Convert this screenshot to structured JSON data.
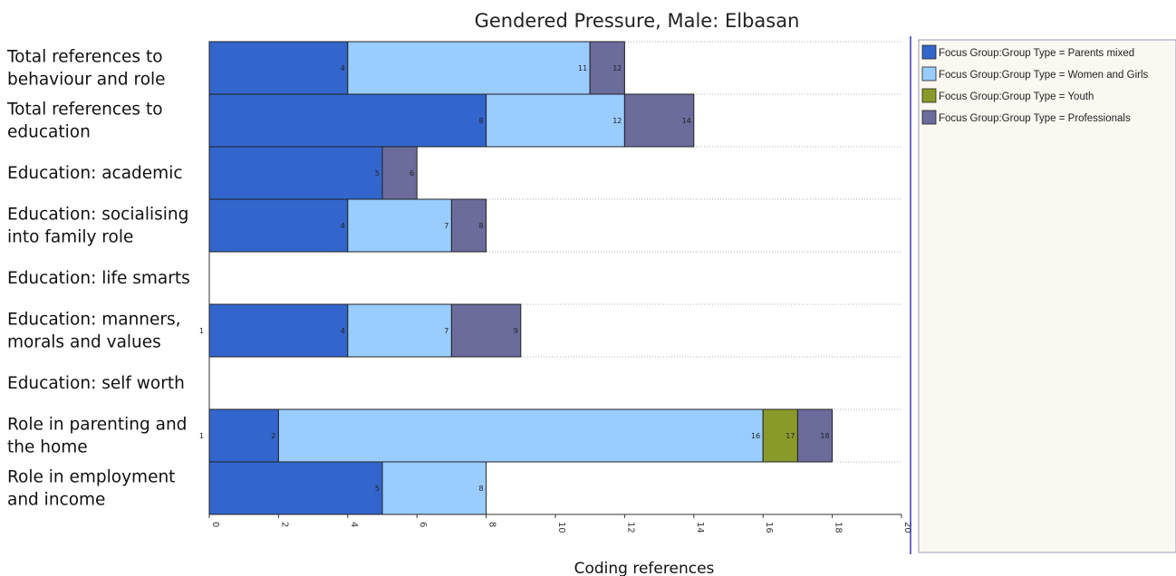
{
  "chart_data": {
    "type": "bar",
    "orientation": "horizontal",
    "stacked": true,
    "title": "Gendered Pressure, Male: Elbasan",
    "xlabel": "Coding references",
    "ylabel": "",
    "xlim": [
      0,
      20
    ],
    "x_ticks": [
      0,
      2,
      4,
      6,
      8,
      10,
      12,
      14,
      16,
      18,
      20
    ],
    "grid": "horizontal dotted separators",
    "legend_position": "right",
    "categories": [
      [
        "Total references to",
        "behaviour and role"
      ],
      [
        "Total references to",
        "education"
      ],
      [
        "Education: academic"
      ],
      [
        "Education: socialising",
        "into family role"
      ],
      [
        "Education: life smarts"
      ],
      [
        "Education: manners,",
        "morals and values"
      ],
      [
        "Education: self worth"
      ],
      [
        "Role in parenting and",
        "the home"
      ],
      [
        "Role in employment",
        "and income"
      ]
    ],
    "series": [
      {
        "name": "Focus Group:Group Type = Parents mixed",
        "color": "#3366cc",
        "values": [
          4,
          8,
          5,
          4,
          0,
          4,
          0,
          2,
          5
        ]
      },
      {
        "name": "Focus Group:Group Type = Women and Girls",
        "color": "#99ccff",
        "values": [
          7,
          4,
          0,
          3,
          0,
          3,
          0,
          14,
          3
        ]
      },
      {
        "name": "Focus Group:Group Type = Youth",
        "color": "#8a9a2a",
        "values": [
          0,
          0,
          0,
          0,
          0,
          0,
          0,
          1,
          0
        ]
      },
      {
        "name": "Focus Group:Group Type = Professionals",
        "color": "#6b6b9c",
        "values": [
          1,
          2,
          1,
          1,
          0,
          2,
          0,
          1,
          0
        ]
      }
    ],
    "data_labels": [
      [
        "4",
        "11",
        "",
        "12"
      ],
      [
        "8",
        "12",
        "",
        "14"
      ],
      [
        "5",
        "",
        "",
        "6"
      ],
      [
        "4",
        "7",
        "",
        "8"
      ],
      [
        "",
        "",
        "",
        ""
      ],
      [
        "4",
        "7",
        "",
        "9"
      ],
      [
        "",
        "",
        "",
        ""
      ],
      [
        "2",
        "16",
        "17",
        "18"
      ],
      [
        "5",
        "8",
        "",
        ""
      ]
    ],
    "side_marks": [
      "",
      "",
      "",
      "",
      "",
      "1",
      "",
      "1",
      ""
    ]
  }
}
